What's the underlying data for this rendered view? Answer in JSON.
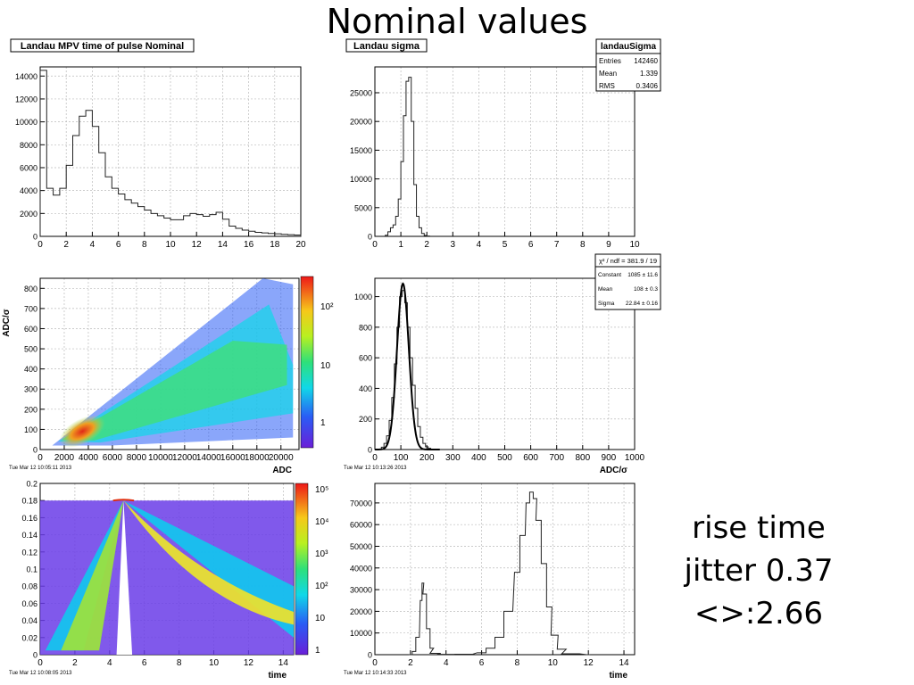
{
  "slide": {
    "title": "Nominal values",
    "notes": [
      "rise time",
      "jitter 0.37",
      "<>:2.66"
    ]
  },
  "chart_data": [
    {
      "type": "area",
      "title": "Landau MPV time of pulse Nominal",
      "xlim": [
        0,
        20
      ],
      "ylim": [
        0,
        14800
      ],
      "x_ticks": [
        0,
        2,
        4,
        6,
        8,
        10,
        12,
        14,
        16,
        18,
        20
      ],
      "y_ticks": [
        0,
        2000,
        4000,
        6000,
        8000,
        10000,
        12000,
        14000
      ],
      "x": [
        0.25,
        0.75,
        1.25,
        1.75,
        2.25,
        2.75,
        3.25,
        3.75,
        4.25,
        4.75,
        5.25,
        5.75,
        6.25,
        6.75,
        7.25,
        7.75,
        8.25,
        8.75,
        9.25,
        9.75,
        10.25,
        10.75,
        11.25,
        11.75,
        12.25,
        12.75,
        13.25,
        13.75,
        14.25,
        14.75,
        15.25,
        15.75,
        16.25,
        16.75,
        17.25,
        17.75,
        18.25,
        18.75,
        19.25,
        19.75
      ],
      "values": [
        14500,
        4200,
        3600,
        4200,
        6200,
        8800,
        10500,
        11000,
        9600,
        7300,
        5200,
        4200,
        3700,
        3200,
        2900,
        2600,
        2300,
        2000,
        1800,
        1600,
        1450,
        1450,
        1800,
        2000,
        1900,
        1750,
        1900,
        2100,
        1500,
        900,
        700,
        550,
        450,
        350,
        300,
        250,
        220,
        180,
        150,
        120
      ]
    },
    {
      "type": "area",
      "title": "Landau sigma",
      "stats": {
        "name": "landauSigma",
        "rows": [
          [
            "Entries",
            "142460"
          ],
          [
            "Mean",
            "1.339"
          ],
          [
            "RMS",
            "0.3406"
          ]
        ]
      },
      "xlim": [
        0,
        10
      ],
      "ylim": [
        0,
        29500
      ],
      "x_ticks": [
        0,
        1,
        2,
        3,
        4,
        5,
        6,
        7,
        8,
        9,
        10
      ],
      "y_ticks": [
        0,
        5000,
        10000,
        15000,
        20000,
        25000
      ],
      "x": [
        0.45,
        0.55,
        0.65,
        0.75,
        0.85,
        0.95,
        1.05,
        1.15,
        1.25,
        1.35,
        1.45,
        1.55,
        1.65,
        1.75,
        1.85,
        1.95,
        2.05
      ],
      "values": [
        200,
        800,
        1500,
        2000,
        3500,
        6500,
        13000,
        21000,
        27000,
        27700,
        20000,
        9000,
        3500,
        1500,
        500,
        150,
        50
      ]
    },
    {
      "type": "heatmap",
      "xlabel": "ADC",
      "ylabel": "ADC/σ",
      "xlim": [
        0,
        21500
      ],
      "ylim": [
        0,
        850
      ],
      "x_ticks": [
        0,
        2000,
        4000,
        6000,
        8000,
        10000,
        12000,
        14000,
        16000,
        18000,
        20000
      ],
      "y_ticks": [
        0,
        100,
        200,
        300,
        400,
        500,
        600,
        700,
        800
      ],
      "palette_ticks": [
        "10²",
        "10",
        "1"
      ],
      "timestamp": "Tue Mar 12 10:05:11 2013"
    },
    {
      "type": "area",
      "xlabel": "ADC/σ",
      "stats": {
        "title": "χ² / ndf = 381.9 / 19",
        "rows": [
          [
            "Constant",
            "1085 ± 11.6"
          ],
          [
            "Mean",
            "108 ± 0.3"
          ],
          [
            "Sigma",
            "22.84 ± 0.16"
          ]
        ]
      },
      "fit": {
        "constant": 1085,
        "mean": 108,
        "sigma": 22.84
      },
      "xlim": [
        0,
        1000
      ],
      "ylim": [
        0,
        1120
      ],
      "x_ticks": [
        0,
        100,
        200,
        300,
        400,
        500,
        600,
        700,
        800,
        900,
        1000
      ],
      "y_ticks": [
        0,
        200,
        400,
        600,
        800,
        1000
      ],
      "x": [
        30,
        40,
        50,
        60,
        70,
        80,
        90,
        100,
        110,
        120,
        130,
        140,
        150,
        160,
        170,
        180,
        190,
        200,
        210
      ],
      "values": [
        15,
        40,
        90,
        190,
        340,
        560,
        800,
        1000,
        1040,
        960,
        800,
        600,
        420,
        270,
        150,
        80,
        40,
        18,
        8
      ],
      "timestamp": "Tue Mar 12 10:13:26 2013"
    },
    {
      "type": "heatmap",
      "xlabel": "time",
      "xlim": [
        0,
        14.6
      ],
      "ylim": [
        0,
        0.2
      ],
      "x_ticks": [
        0,
        2,
        4,
        6,
        8,
        10,
        12,
        14
      ],
      "y_ticks": [
        0,
        0.02,
        0.04,
        0.06,
        0.08,
        0.1,
        0.12,
        0.14,
        0.16,
        0.18,
        0.2
      ],
      "y_tick_labels": [
        "0",
        "0.02",
        "0.04",
        "0.06",
        "0.08",
        "0.1",
        "0.12",
        "0.14",
        "0.16",
        "0.18",
        "0.2"
      ],
      "palette_ticks": [
        "10⁵",
        "10⁴",
        "10³",
        "10²",
        "10",
        "1"
      ],
      "timestamp": "Tue Mar 12 10:08:05 2013"
    },
    {
      "type": "area",
      "xlabel": "time",
      "xlim": [
        0,
        14.6
      ],
      "ylim": [
        0,
        79000
      ],
      "x_ticks": [
        0,
        2,
        4,
        6,
        8,
        10,
        12,
        14
      ],
      "y_ticks": [
        0,
        10000,
        20000,
        30000,
        40000,
        50000,
        60000,
        70000
      ],
      "x": [
        2.0,
        2.2,
        2.4,
        2.6,
        2.7,
        2.8,
        3.0,
        3.2,
        3.4,
        4.0,
        5.0,
        6.0,
        6.5,
        7.0,
        7.5,
        8.0,
        8.3,
        8.6,
        8.8,
        9.0,
        9.2,
        9.5,
        9.8,
        10.1,
        10.5,
        11.0,
        12.0
      ],
      "values": [
        0,
        1500,
        8000,
        25000,
        33000,
        28000,
        12000,
        3000,
        600,
        150,
        200,
        900,
        3000,
        8000,
        20000,
        38000,
        55000,
        70000,
        75000,
        72000,
        62000,
        42000,
        22000,
        9000,
        2500,
        400,
        0
      ],
      "timestamp": "Tue Mar 12 10:14:33 2013"
    }
  ]
}
